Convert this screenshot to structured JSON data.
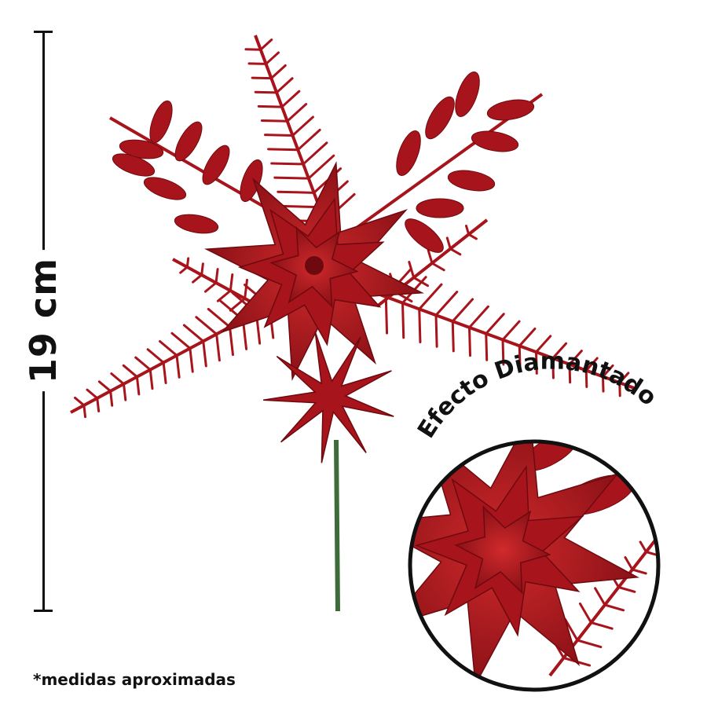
{
  "measurement": {
    "label": "19 cm"
  },
  "zoom_badge": {
    "label": "Efecto Diamantado"
  },
  "footnote": "*medidas aproximadas",
  "colors": {
    "product_red": "#a8141b",
    "dark_red": "#6e0a0f",
    "stem_green": "#3d6b3a",
    "ink": "#111111"
  }
}
